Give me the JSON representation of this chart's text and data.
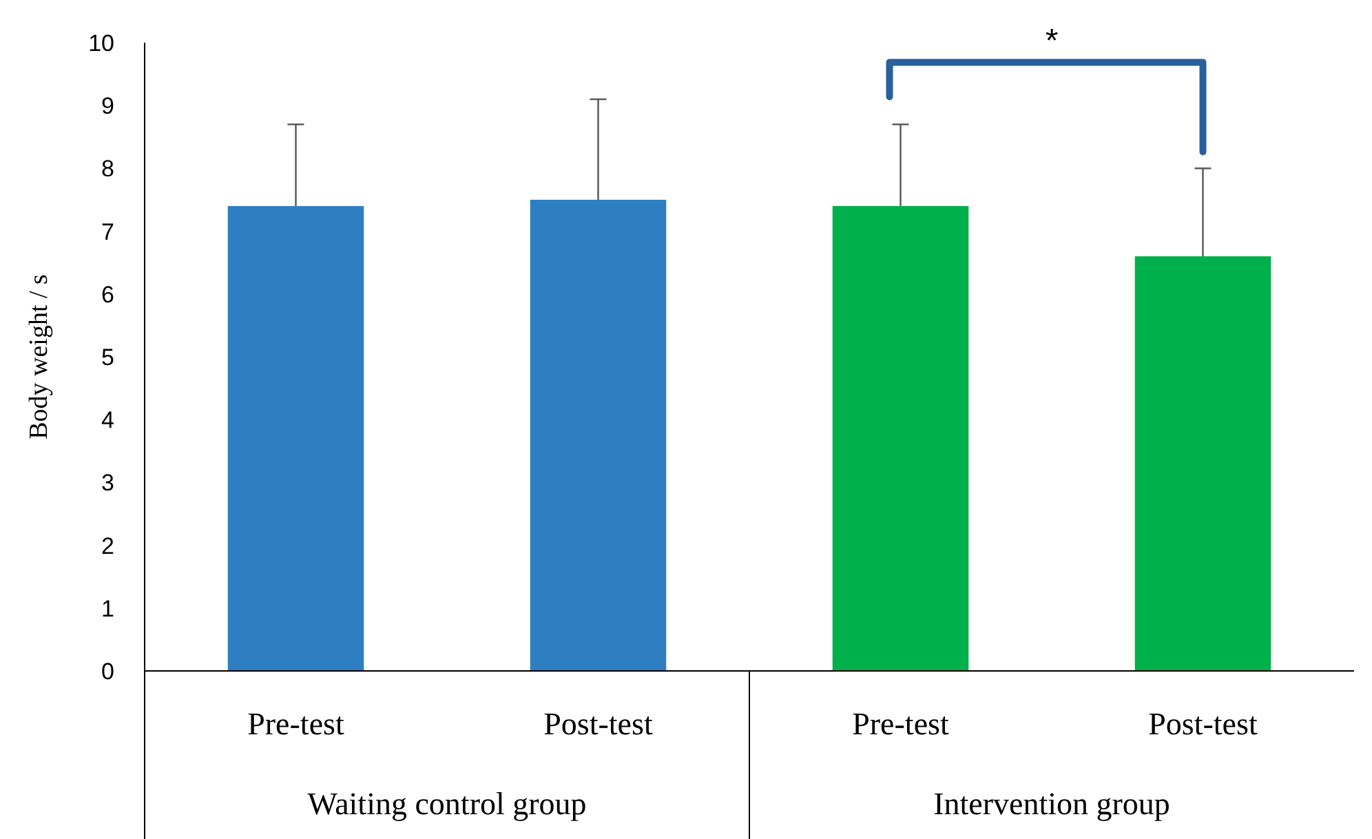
{
  "chart_data": {
    "type": "bar",
    "ylabel": "Body weight / s",
    "categories": [
      "Pre-test",
      "Post-test",
      "Pre-test",
      "Post-test"
    ],
    "values": [
      7.4,
      7.5,
      7.4,
      6.6
    ],
    "colors": [
      "#2e7fc2",
      "#2e7fc2",
      "#00b04a",
      "#00b04a"
    ],
    "errors": [
      1.3,
      1.6,
      1.3,
      1.4
    ],
    "ylim": [
      0,
      10
    ],
    "yticks": [
      0,
      1,
      2,
      3,
      4,
      5,
      6,
      7,
      8,
      9,
      10
    ],
    "grid": false,
    "annotations": [
      "*",
      "Waiting control group",
      "Intervention group"
    ]
  }
}
